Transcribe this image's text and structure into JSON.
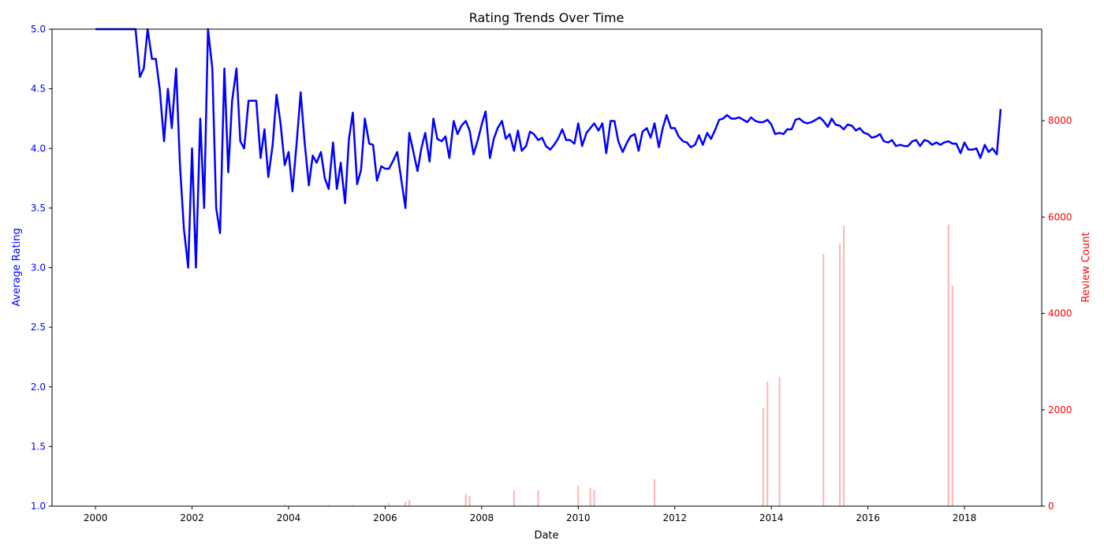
{
  "chart_data": {
    "type": "line",
    "title": "Rating Trends Over Time",
    "xlabel": "Date",
    "ylabel_left": "Average Rating",
    "ylabel_right": "Review Count",
    "x_ticks": [
      "2000",
      "2002",
      "2004",
      "2006",
      "2008",
      "2010",
      "2012",
      "2014",
      "2016",
      "2018"
    ],
    "x_range": [
      1999.1,
      2019.6
    ],
    "y_left_range": [
      1.0,
      5.0
    ],
    "y_left_ticks": [
      "1.0",
      "1.5",
      "2.0",
      "2.5",
      "3.0",
      "3.5",
      "4.0",
      "4.5",
      "5.0"
    ],
    "y_right_range": [
      0,
      9900
    ],
    "y_right_ticks": [
      "0",
      "2000",
      "4000",
      "6000",
      "8000"
    ],
    "grid": false,
    "colors": {
      "rating": "#0000ff",
      "count": "#ff0000",
      "left_axis": "#0000ff",
      "right_axis": "#ff0000"
    },
    "series": [
      {
        "axis": "left",
        "kind": "line",
        "x": [
          2000.0,
          2000.83,
          2000.92,
          2001.0,
          2001.08,
          2001.17,
          2001.25,
          2001.33,
          2001.42,
          2001.5,
          2001.58,
          2001.67,
          2001.75,
          2001.83,
          2001.92,
          2002.0,
          2002.08,
          2002.17,
          2002.25,
          2002.33,
          2002.42,
          2002.5,
          2002.58,
          2002.67,
          2002.75,
          2002.83,
          2002.92,
          2003.0,
          2003.08,
          2003.17,
          2003.25,
          2003.33,
          2003.42,
          2003.5,
          2003.58,
          2003.67,
          2003.75,
          2003.83,
          2003.92,
          2004.0,
          2004.08,
          2004.17,
          2004.25,
          2004.33,
          2004.42,
          2004.5,
          2004.58,
          2004.67,
          2004.75,
          2004.83,
          2004.92,
          2005.0,
          2005.08,
          2005.17,
          2005.25,
          2005.33,
          2005.42,
          2005.5,
          2005.58,
          2005.67,
          2005.75,
          2005.83,
          2005.92,
          2006.0,
          2006.08,
          2006.17,
          2006.25,
          2006.33,
          2006.42,
          2006.5,
          2006.58,
          2006.67,
          2006.75,
          2006.83,
          2006.92,
          2007.0,
          2007.08,
          2007.17,
          2007.25,
          2007.33,
          2007.42,
          2007.5,
          2007.58,
          2007.67,
          2007.75,
          2007.83,
          2007.92,
          2008.0,
          2008.08,
          2008.17,
          2008.25,
          2008.33,
          2008.42,
          2008.5,
          2008.58,
          2008.67,
          2008.75,
          2008.83,
          2008.92,
          2009.0,
          2009.08,
          2009.17,
          2009.25,
          2009.33,
          2009.42,
          2009.5,
          2009.58,
          2009.67,
          2009.75,
          2009.83,
          2009.92,
          2010.0,
          2010.08,
          2010.17,
          2010.25,
          2010.33,
          2010.42,
          2010.5,
          2010.58,
          2010.67,
          2010.75,
          2010.83,
          2010.92,
          2011.0,
          2011.08,
          2011.17,
          2011.25,
          2011.33,
          2011.42,
          2011.5,
          2011.58,
          2011.67,
          2011.75,
          2011.83,
          2011.92,
          2012.0,
          2012.08,
          2012.17,
          2012.25,
          2012.33,
          2012.42,
          2012.5,
          2012.58,
          2012.67,
          2012.75,
          2012.83,
          2012.92,
          2013.0,
          2013.08,
          2013.17,
          2013.25,
          2013.33,
          2013.42,
          2013.5,
          2013.58,
          2013.67,
          2013.75,
          2013.83,
          2013.92,
          2014.0,
          2014.08,
          2014.17,
          2014.25,
          2014.33,
          2014.42,
          2014.5,
          2014.58,
          2014.67,
          2014.75,
          2014.83,
          2014.92,
          2015.0,
          2015.08,
          2015.17,
          2015.25,
          2015.33,
          2015.42,
          2015.5,
          2015.58,
          2015.67,
          2015.75,
          2015.83,
          2015.92,
          2016.0,
          2016.08,
          2016.17,
          2016.25,
          2016.33,
          2016.42,
          2016.5,
          2016.58,
          2016.67,
          2016.75,
          2016.83,
          2016.92,
          2017.0,
          2017.08,
          2017.17,
          2017.25,
          2017.33,
          2017.42,
          2017.5,
          2017.58,
          2017.67,
          2017.75,
          2017.83,
          2017.92,
          2018.0,
          2018.08,
          2018.17,
          2018.25,
          2018.33,
          2018.42,
          2018.5,
          2018.58,
          2018.67,
          2018.75
        ],
        "y": [
          5.0,
          5.0,
          4.6,
          4.67,
          5.0,
          4.75,
          4.75,
          4.5,
          4.06,
          4.5,
          4.17,
          4.67,
          3.86,
          3.33,
          3.0,
          4.0,
          3.0,
          4.25,
          3.5,
          5.0,
          4.67,
          3.5,
          3.29,
          4.67,
          3.8,
          4.4,
          4.67,
          4.06,
          4.0,
          4.4,
          4.4,
          4.4,
          3.92,
          4.16,
          3.76,
          4.03,
          4.45,
          4.22,
          3.86,
          3.97,
          3.64,
          4.06,
          4.47,
          4.06,
          3.69,
          3.94,
          3.88,
          3.97,
          3.75,
          3.66,
          4.05,
          3.66,
          3.88,
          3.54,
          4.08,
          4.3,
          3.7,
          3.82,
          4.25,
          4.04,
          4.03,
          3.73,
          3.85,
          3.83,
          3.83,
          3.9,
          3.97,
          3.75,
          3.5,
          4.13,
          3.98,
          3.81,
          4.0,
          4.13,
          3.89,
          4.25,
          4.08,
          4.06,
          4.1,
          3.92,
          4.23,
          4.12,
          4.19,
          4.23,
          4.15,
          3.95,
          4.07,
          4.2,
          4.31,
          3.92,
          4.08,
          4.17,
          4.23,
          4.08,
          4.12,
          3.98,
          4.15,
          3.98,
          4.02,
          4.14,
          4.12,
          4.07,
          4.09,
          4.02,
          3.99,
          4.03,
          4.08,
          4.16,
          4.07,
          4.07,
          4.04,
          4.21,
          4.02,
          4.13,
          4.17,
          4.21,
          4.15,
          4.21,
          3.96,
          4.23,
          4.23,
          4.06,
          3.97,
          4.04,
          4.1,
          4.12,
          3.98,
          4.14,
          4.17,
          4.09,
          4.21,
          4.01,
          4.17,
          4.28,
          4.17,
          4.17,
          4.1,
          4.06,
          4.05,
          4.01,
          4.03,
          4.11,
          4.03,
          4.13,
          4.08,
          4.15,
          4.24,
          4.25,
          4.28,
          4.25,
          4.25,
          4.26,
          4.24,
          4.22,
          4.26,
          4.23,
          4.22,
          4.22,
          4.24,
          4.2,
          4.12,
          4.13,
          4.12,
          4.16,
          4.16,
          4.24,
          4.25,
          4.22,
          4.21,
          4.22,
          4.24,
          4.26,
          4.23,
          4.18,
          4.25,
          4.2,
          4.19,
          4.16,
          4.2,
          4.19,
          4.15,
          4.17,
          4.13,
          4.12,
          4.09,
          4.1,
          4.12,
          4.06,
          4.05,
          4.07,
          4.02,
          4.03,
          4.02,
          4.02,
          4.06,
          4.07,
          4.02,
          4.07,
          4.06,
          4.03,
          4.05,
          4.03,
          4.05,
          4.06,
          4.04,
          4.04,
          3.96,
          4.05,
          3.99,
          3.99,
          4.0,
          3.92,
          4.03,
          3.97,
          4.0,
          3.95,
          4.33
        ]
      },
      {
        "axis": "right",
        "kind": "bar",
        "x": [
          2003.92,
          2004.83,
          2005.33,
          2006.08,
          2006.42,
          2006.5,
          2007.67,
          2007.75,
          2008.67,
          2009.17,
          2010.0,
          2010.25,
          2010.33,
          2011.58,
          2013.83,
          2013.92,
          2014.17,
          2015.08,
          2015.42,
          2015.5,
          2017.67,
          2017.75
        ],
        "y": [
          30,
          20,
          20,
          60,
          90,
          120,
          250,
          210,
          330,
          320,
          420,
          380,
          340,
          560,
          2030,
          2580,
          2680,
          5230,
          5450,
          5820,
          5840,
          4580
        ]
      }
    ]
  }
}
